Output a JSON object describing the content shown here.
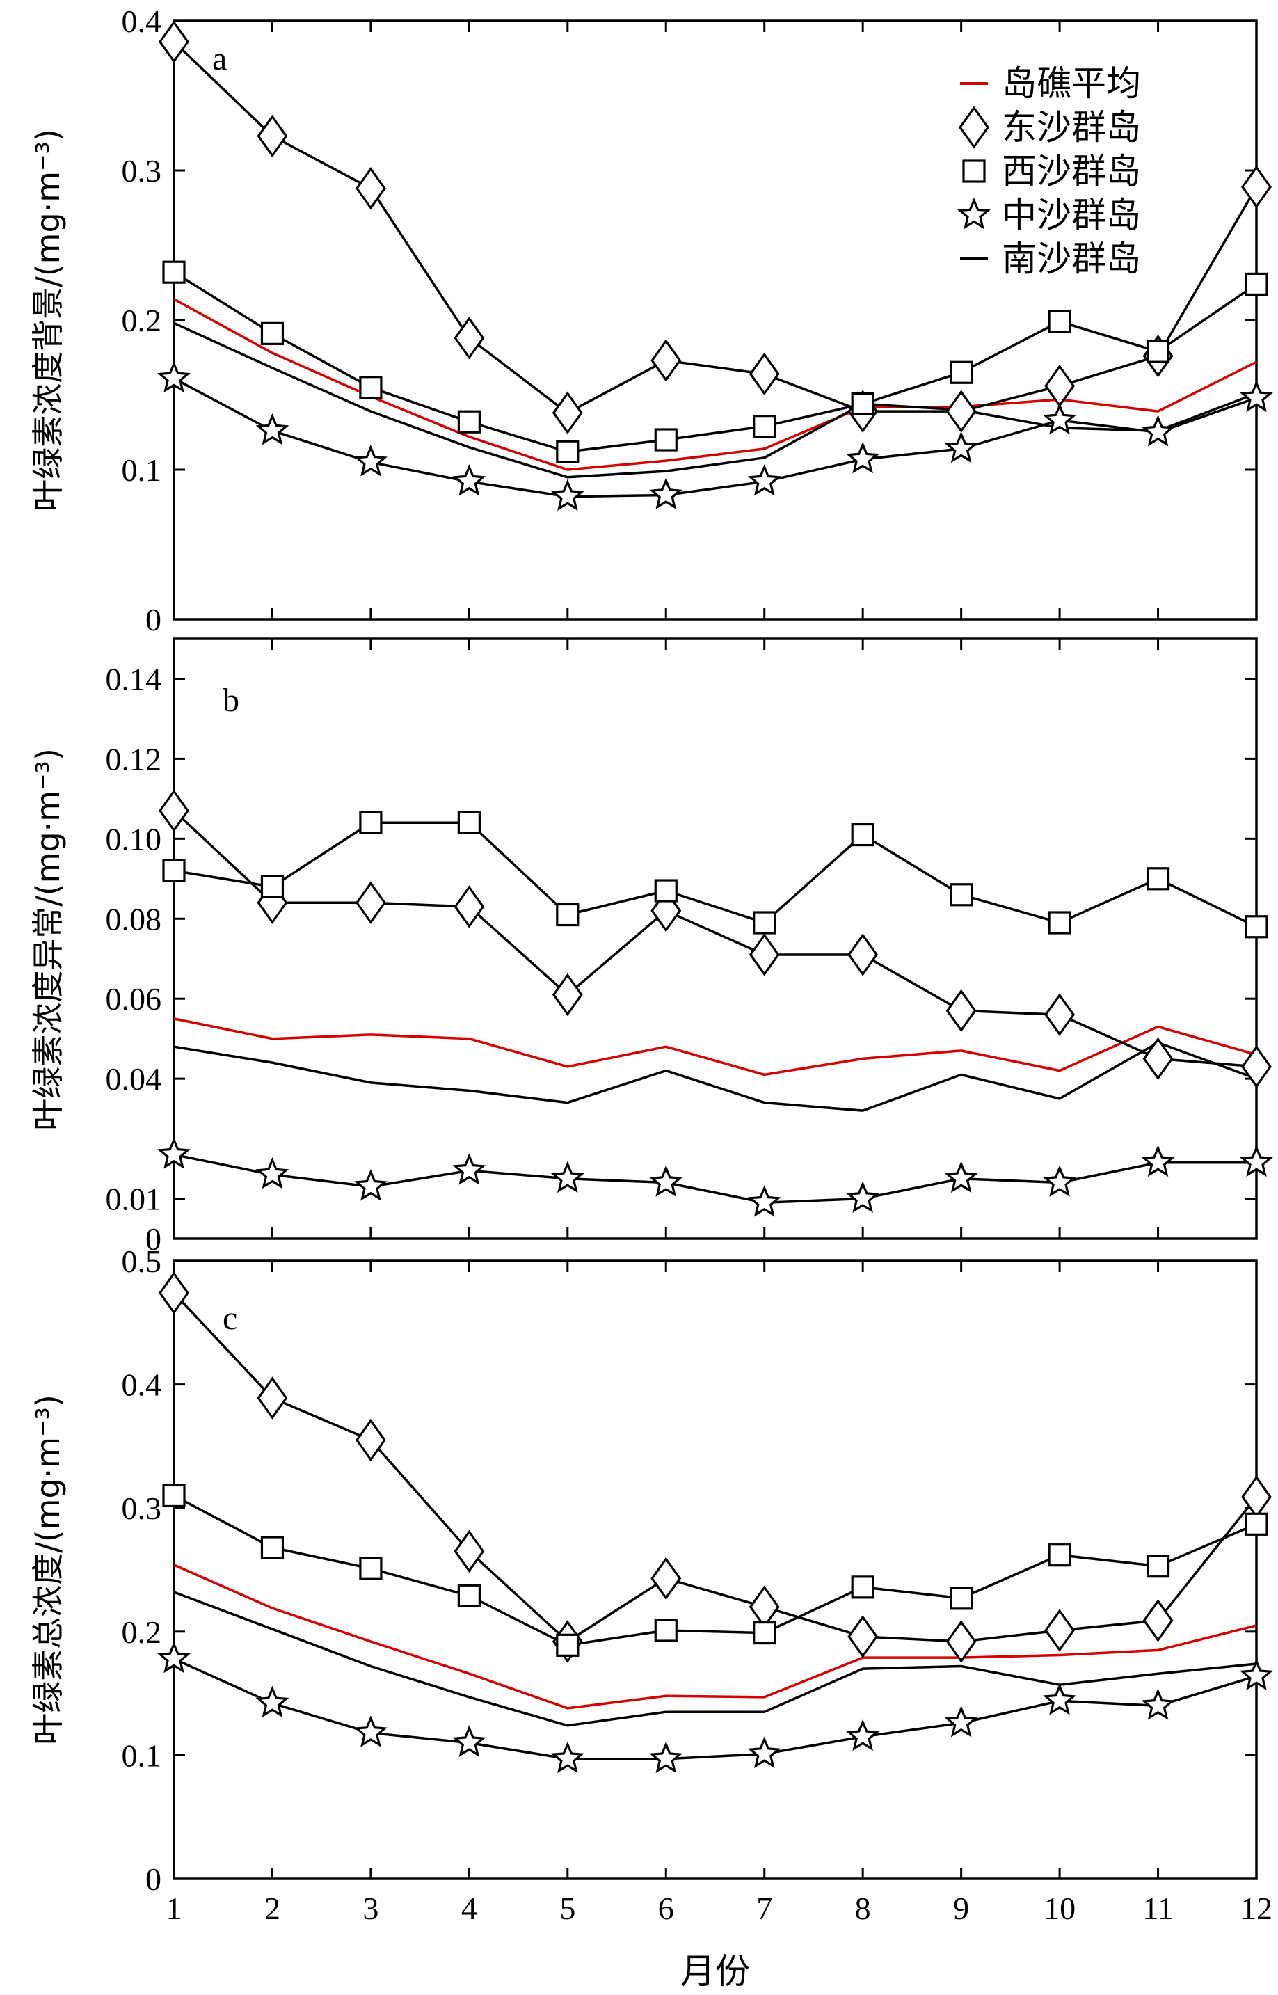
{
  "chart_data": [
    {
      "type": "line",
      "panel": "a",
      "ylabel": "叶绿素浓度背景/(mg·m⁻³)",
      "x": [
        1,
        2,
        3,
        4,
        5,
        6,
        7,
        8,
        9,
        10,
        11,
        12
      ],
      "ylim": [
        0,
        0.4
      ],
      "yticks": [
        0,
        0.1,
        0.2,
        0.3,
        0.4
      ],
      "ytick_labels": [
        "0",
        "0.1",
        "0.2",
        "0.3",
        "0.4"
      ],
      "series": [
        {
          "name": "岛礁平均",
          "color": "#d40000",
          "marker": "none",
          "values": [
            0.214,
            0.178,
            0.149,
            0.122,
            0.1,
            0.106,
            0.114,
            0.142,
            0.142,
            0.147,
            0.139,
            0.172
          ]
        },
        {
          "name": "东沙群岛",
          "color": "#000000",
          "marker": "diamond",
          "values": [
            0.386,
            0.323,
            0.288,
            0.188,
            0.138,
            0.173,
            0.164,
            0.139,
            0.139,
            0.156,
            0.176,
            0.289
          ]
        },
        {
          "name": "西沙群岛",
          "color": "#000000",
          "marker": "square",
          "values": [
            0.232,
            0.191,
            0.155,
            0.132,
            0.112,
            0.12,
            0.129,
            0.144,
            0.165,
            0.199,
            0.179,
            0.224
          ]
        },
        {
          "name": "中沙群岛",
          "color": "#000000",
          "marker": "star",
          "values": [
            0.161,
            0.126,
            0.105,
            0.092,
            0.082,
            0.083,
            0.092,
            0.107,
            0.114,
            0.133,
            0.125,
            0.148
          ]
        },
        {
          "name": "南沙群岛",
          "color": "#000000",
          "marker": "none",
          "values": [
            0.198,
            0.168,
            0.139,
            0.115,
            0.095,
            0.099,
            0.108,
            0.144,
            0.14,
            0.128,
            0.126,
            0.151
          ]
        }
      ]
    },
    {
      "type": "line",
      "panel": "b",
      "ylabel": "叶绿素浓度异常/(mg·m⁻³)",
      "x": [
        1,
        2,
        3,
        4,
        5,
        6,
        7,
        8,
        9,
        10,
        11,
        12
      ],
      "ylim": [
        0,
        0.15
      ],
      "yticks": [
        0.01,
        0.04,
        0.06,
        0.08,
        0.1,
        0.12,
        0.14
      ],
      "ytick_labels": [
        "0.01",
        "0.04",
        "0.06",
        "0.08",
        "0.10",
        "0.12",
        "0.14"
      ],
      "extra_label": "0",
      "series": [
        {
          "name": "岛礁平均",
          "color": "#d40000",
          "marker": "none",
          "values": [
            0.055,
            0.05,
            0.051,
            0.05,
            0.043,
            0.048,
            0.041,
            0.045,
            0.047,
            0.042,
            0.053,
            0.046
          ]
        },
        {
          "name": "东沙群岛",
          "color": "#000000",
          "marker": "diamond",
          "values": [
            0.107,
            0.084,
            0.084,
            0.083,
            0.061,
            0.082,
            0.071,
            0.071,
            0.057,
            0.056,
            0.045,
            0.043
          ]
        },
        {
          "name": "西沙群岛",
          "color": "#000000",
          "marker": "square",
          "values": [
            0.092,
            0.088,
            0.104,
            0.104,
            0.081,
            0.087,
            0.079,
            0.101,
            0.086,
            0.079,
            0.09,
            0.078
          ]
        },
        {
          "name": "中沙群岛",
          "color": "#000000",
          "marker": "star",
          "values": [
            0.021,
            0.016,
            0.013,
            0.017,
            0.015,
            0.014,
            0.009,
            0.01,
            0.015,
            0.014,
            0.019,
            0.019
          ]
        },
        {
          "name": "南沙群岛",
          "color": "#000000",
          "marker": "none",
          "values": [
            0.048,
            0.044,
            0.039,
            0.037,
            0.034,
            0.042,
            0.034,
            0.032,
            0.041,
            0.035,
            0.049,
            0.04
          ]
        }
      ]
    },
    {
      "type": "line",
      "panel": "c",
      "ylabel": "叶绿素总浓度/(mg·m⁻³)",
      "xlabel": "月份",
      "x": [
        1,
        2,
        3,
        4,
        5,
        6,
        7,
        8,
        9,
        10,
        11,
        12
      ],
      "xtick_labels": [
        "1",
        "2",
        "3",
        "4",
        "5",
        "6",
        "7",
        "8",
        "9",
        "10",
        "11",
        "12"
      ],
      "ylim": [
        0,
        0.5
      ],
      "yticks": [
        0,
        0.1,
        0.2,
        0.3,
        0.4,
        0.5
      ],
      "ytick_labels": [
        "0",
        "0.1",
        "0.2",
        "0.3",
        "0.4",
        "0.5"
      ],
      "series": [
        {
          "name": "岛礁平均",
          "color": "#d40000",
          "marker": "none",
          "values": [
            0.254,
            0.219,
            0.192,
            0.166,
            0.138,
            0.148,
            0.147,
            0.179,
            0.179,
            0.181,
            0.185,
            0.205
          ]
        },
        {
          "name": "东沙群岛",
          "color": "#000000",
          "marker": "diamond",
          "values": [
            0.474,
            0.389,
            0.355,
            0.265,
            0.192,
            0.243,
            0.22,
            0.196,
            0.192,
            0.201,
            0.209,
            0.309
          ]
        },
        {
          "name": "西沙群岛",
          "color": "#000000",
          "marker": "square",
          "values": [
            0.31,
            0.268,
            0.251,
            0.229,
            0.189,
            0.201,
            0.199,
            0.236,
            0.227,
            0.262,
            0.253,
            0.287
          ]
        },
        {
          "name": "中沙群岛",
          "color": "#000000",
          "marker": "star",
          "values": [
            0.178,
            0.142,
            0.118,
            0.11,
            0.097,
            0.097,
            0.101,
            0.115,
            0.126,
            0.144,
            0.14,
            0.164
          ]
        },
        {
          "name": "南沙群岛",
          "color": "#000000",
          "marker": "none",
          "values": [
            0.232,
            0.202,
            0.172,
            0.147,
            0.124,
            0.135,
            0.135,
            0.17,
            0.172,
            0.157,
            0.166,
            0.174
          ]
        }
      ]
    }
  ],
  "legend": {
    "placement": "top-right of panel a",
    "entries": [
      {
        "label": "岛礁平均",
        "marker": "line",
        "color": "#d40000"
      },
      {
        "label": "东沙群岛",
        "marker": "diamond",
        "color": "#000000"
      },
      {
        "label": "西沙群岛",
        "marker": "square",
        "color": "#000000"
      },
      {
        "label": "中沙群岛",
        "marker": "star",
        "color": "#000000"
      },
      {
        "label": "南沙群岛",
        "marker": "line",
        "color": "#000000"
      }
    ]
  }
}
